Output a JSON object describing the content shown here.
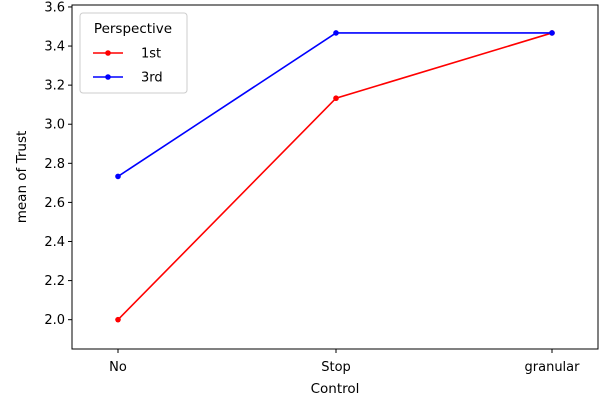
{
  "chart_data": {
    "type": "line",
    "xlabel": "Control",
    "ylabel": "mean of Trust",
    "categories": [
      "No",
      "Stop",
      "granular"
    ],
    "ylim": [
      1.85,
      3.61
    ],
    "yticks": [
      "2.0",
      "2.2",
      "2.4",
      "2.6",
      "2.8",
      "3.0",
      "3.2",
      "3.4",
      "3.6"
    ],
    "grid": false,
    "legend": {
      "title": "Perspective",
      "placement": "top-left"
    },
    "series": [
      {
        "name": "1st",
        "color": "#ff0000",
        "values": [
          2.0,
          3.133,
          3.467
        ]
      },
      {
        "name": "3rd",
        "color": "#0000ff",
        "values": [
          2.733,
          3.467,
          3.467
        ]
      }
    ]
  }
}
